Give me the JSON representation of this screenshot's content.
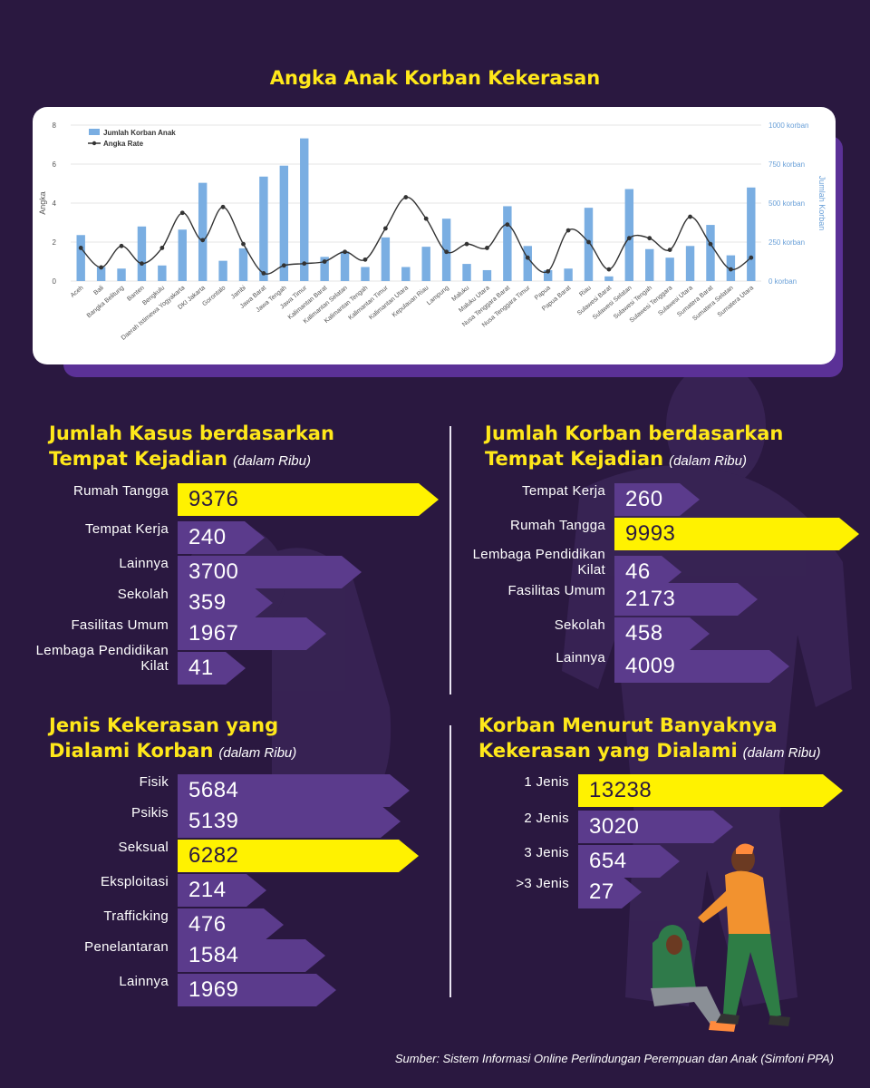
{
  "title": "Angka Anak Korban Kekerasan",
  "chart_data": {
    "type": "bar",
    "categories": [
      "Aceh",
      "Bali",
      "Bangka Belitung",
      "Banten",
      "Bengkulu",
      "Daerah Istimewa Yogyakarta",
      "DKI Jakarta",
      "Gorontalo",
      "Jambi",
      "Jawa Barat",
      "Jawa Tengah",
      "Jawa Timur",
      "Kalimantan Barat",
      "Kalimantan Selatan",
      "Kalimantan Tengah",
      "Kalimantan Timur",
      "Kalimantan Utara",
      "Kepulauan Riau",
      "Lampung",
      "Maluku",
      "Maluku Utara",
      "Nusa Tenggara Barat",
      "Nusa Tenggara Timur",
      "Papua",
      "Papua Barat",
      "Riau",
      "Sulawesi Barat",
      "Sulawesi Selatan",
      "Sulawesi Tengah",
      "Sulawesi Tenggara",
      "Sulawesi Utara",
      "Sumatera Barat",
      "Sumatera Selatan",
      "Sumatera Utara"
    ],
    "series": [
      {
        "name": "Jumlah Korban Anak",
        "axis": "right",
        "type": "bar",
        "color": "#7aaee2",
        "values": [
          295,
          90,
          80,
          350,
          100,
          330,
          630,
          130,
          210,
          670,
          740,
          915,
          155,
          190,
          90,
          280,
          90,
          220,
          400,
          110,
          70,
          480,
          225,
          70,
          80,
          470,
          30,
          590,
          205,
          150,
          225,
          360,
          165,
          600
        ]
      },
      {
        "name": "Angka Rate",
        "axis": "left",
        "type": "line",
        "color": "#333333",
        "values": [
          1.7,
          0.7,
          1.8,
          0.9,
          1.7,
          3.5,
          2.1,
          3.8,
          1.9,
          0.4,
          0.8,
          0.9,
          1.0,
          1.5,
          1.1,
          2.7,
          4.3,
          3.2,
          1.5,
          1.9,
          1.7,
          2.9,
          1.2,
          0.5,
          2.6,
          2.0,
          0.6,
          2.2,
          2.2,
          1.6,
          3.3,
          1.9,
          0.6,
          1.2
        ]
      }
    ],
    "y_left": {
      "label": "Angka",
      "range": [
        0,
        8
      ],
      "ticks": [
        "0",
        "2",
        "4",
        "6",
        "8"
      ]
    },
    "y_right": {
      "label": "Jumlah Korban",
      "range": [
        0,
        1000
      ],
      "ticks": [
        "0 korban",
        "250 korban",
        "500 korban",
        "750 korban",
        "1000 korban"
      ]
    },
    "legend": "top-left",
    "grid": true
  },
  "sections": [
    {
      "title_line1": "Jumlah Kasus berdasarkan",
      "title_line2": "Tempat Kejadian",
      "unit": "(dalam Ribu)",
      "rows": [
        {
          "label": "Rumah Tangga",
          "value": "9376",
          "highlight": true
        },
        {
          "label": "Tempat Kerja",
          "value": "240",
          "highlight": false
        },
        {
          "label": "Lainnya",
          "value": "3700",
          "highlight": false
        },
        {
          "label": "Sekolah",
          "value": "359",
          "highlight": false
        },
        {
          "label": "Fasilitas Umum",
          "value": "1967",
          "highlight": false
        },
        {
          "label": "Lembaga Pendidikan Kilat",
          "value": "41",
          "highlight": false
        }
      ]
    },
    {
      "title_line1": "Jumlah Korban berdasarkan",
      "title_line2": "Tempat Kejadian",
      "unit": "(dalam Ribu)",
      "rows": [
        {
          "label": "Tempat Kerja",
          "value": "260",
          "highlight": false
        },
        {
          "label": "Rumah Tangga",
          "value": "9993",
          "highlight": true
        },
        {
          "label": "Lembaga Pendidikan Kilat",
          "value": "46",
          "highlight": false
        },
        {
          "label": "Fasilitas Umum",
          "value": "2173",
          "highlight": false
        },
        {
          "label": "Sekolah",
          "value": "458",
          "highlight": false
        },
        {
          "label": "Lainnya",
          "value": "4009",
          "highlight": false
        }
      ]
    },
    {
      "title_line1": "Jenis Kekerasan yang",
      "title_line2": "Dialami Korban",
      "unit": "(dalam Ribu)",
      "rows": [
        {
          "label": "Fisik",
          "value": "5684",
          "highlight": false
        },
        {
          "label": "Psikis",
          "value": "5139",
          "highlight": false
        },
        {
          "label": "Seksual",
          "value": "6282",
          "highlight": true
        },
        {
          "label": "Eksploitasi",
          "value": "214",
          "highlight": false
        },
        {
          "label": "Trafficking",
          "value": "476",
          "highlight": false
        },
        {
          "label": "Penelantaran",
          "value": "1584",
          "highlight": false
        },
        {
          "label": "Lainnya",
          "value": "1969",
          "highlight": false
        }
      ]
    },
    {
      "title_line1": "Korban Menurut Banyaknya",
      "title_line2": "Kekerasan yang Dialami",
      "unit": "(dalam Ribu)",
      "rows": [
        {
          "label": "1 Jenis",
          "value": "13238",
          "highlight": true
        },
        {
          "label": "2 Jenis",
          "value": "3020",
          "highlight": false
        },
        {
          "label": "3 Jenis",
          "value": "654",
          "highlight": false
        },
        {
          "label": ">3 Jenis",
          "value": "27",
          "highlight": false
        }
      ]
    }
  ],
  "source": "Sumber: Sistem Informasi Online Perlindungan Perempuan dan Anak (Simfoni PPA)"
}
